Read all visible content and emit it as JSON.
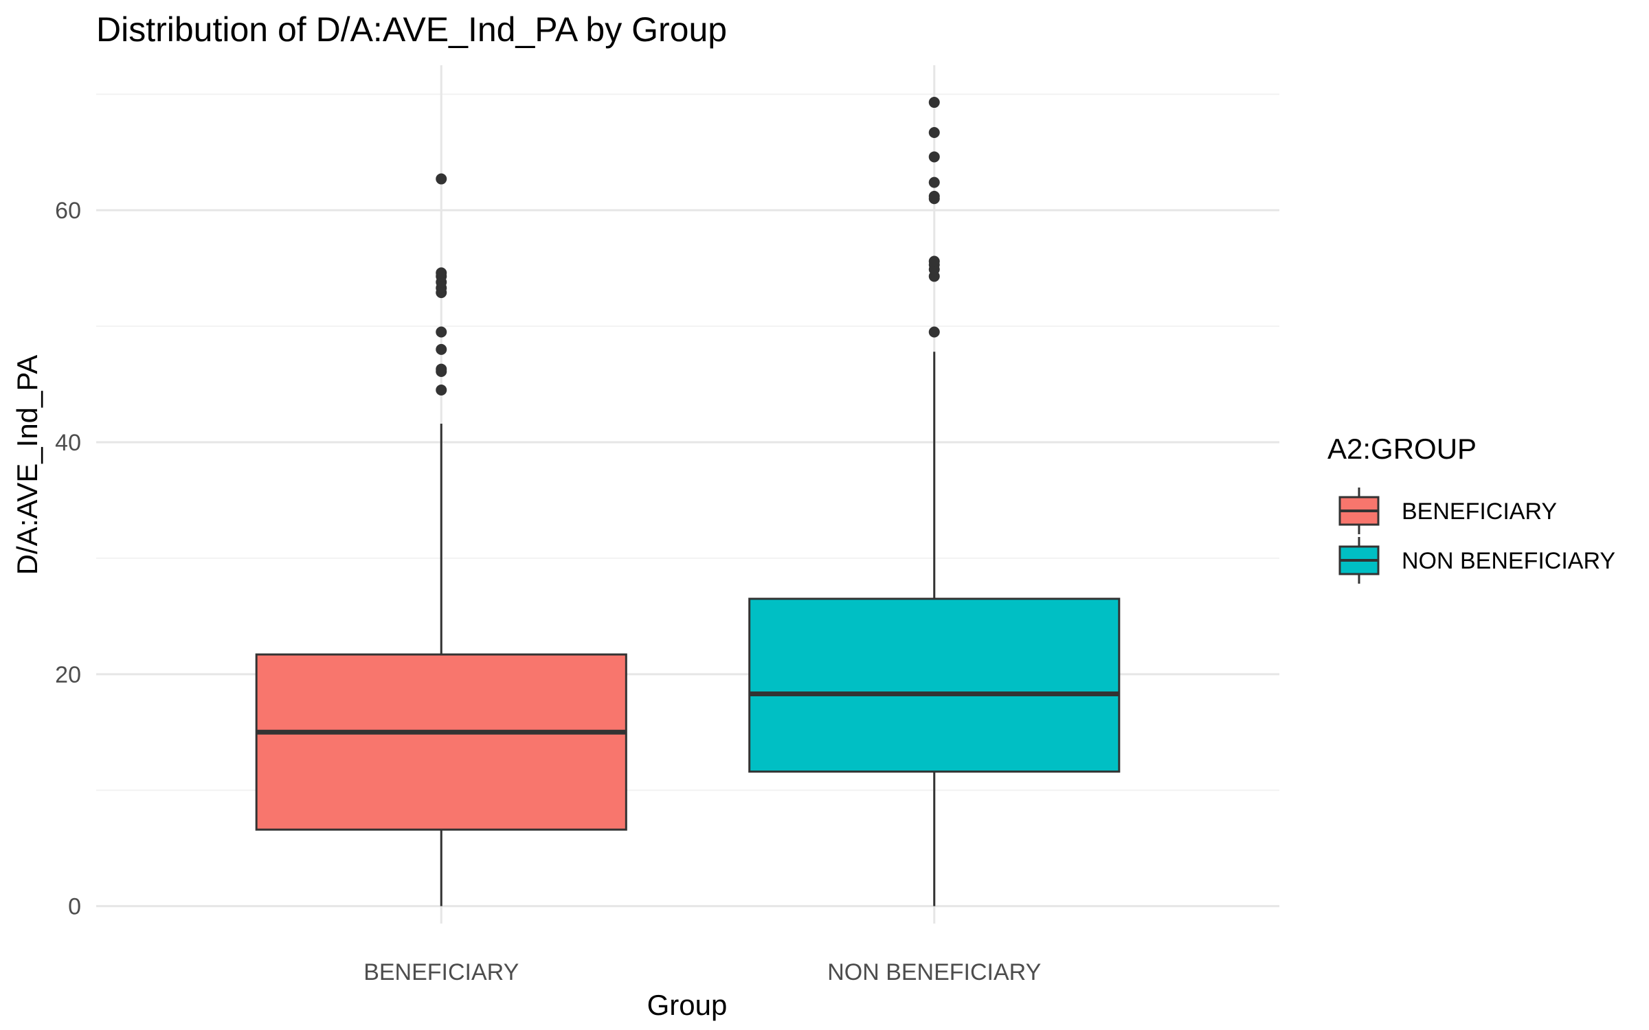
{
  "chart_data": {
    "type": "boxplot",
    "title": "Distribution of D/A:AVE_Ind_PA by Group",
    "xlabel": "Group",
    "ylabel": "D/A:AVE_Ind_PA",
    "ylim": [
      -1.5,
      72.5
    ],
    "yticks": [
      0,
      20,
      40,
      60
    ],
    "grid": true,
    "legend": {
      "title": "A2:GROUP",
      "placement": "right"
    },
    "categories": [
      "BENEFICIARY",
      "NON BENEFICIARY"
    ],
    "series": [
      {
        "name": "BENEFICIARY",
        "color": "#F8766D",
        "whisker_low": 0,
        "q1": 6.6,
        "median": 15.0,
        "q3": 21.7,
        "whisker_high": 41.6,
        "outliers": [
          44.5,
          46.1,
          46.3,
          48.0,
          49.5,
          52.9,
          53.3,
          53.8,
          54.3,
          54.6,
          62.7
        ]
      },
      {
        "name": "NON BENEFICIARY",
        "color": "#00BFC4",
        "whisker_low": 0,
        "q1": 11.6,
        "median": 18.3,
        "q3": 26.5,
        "whisker_high": 47.8,
        "outliers": [
          49.5,
          54.3,
          54.9,
          55.3,
          55.6,
          61.0,
          61.2,
          62.4,
          64.6,
          66.7,
          69.3
        ]
      }
    ]
  }
}
